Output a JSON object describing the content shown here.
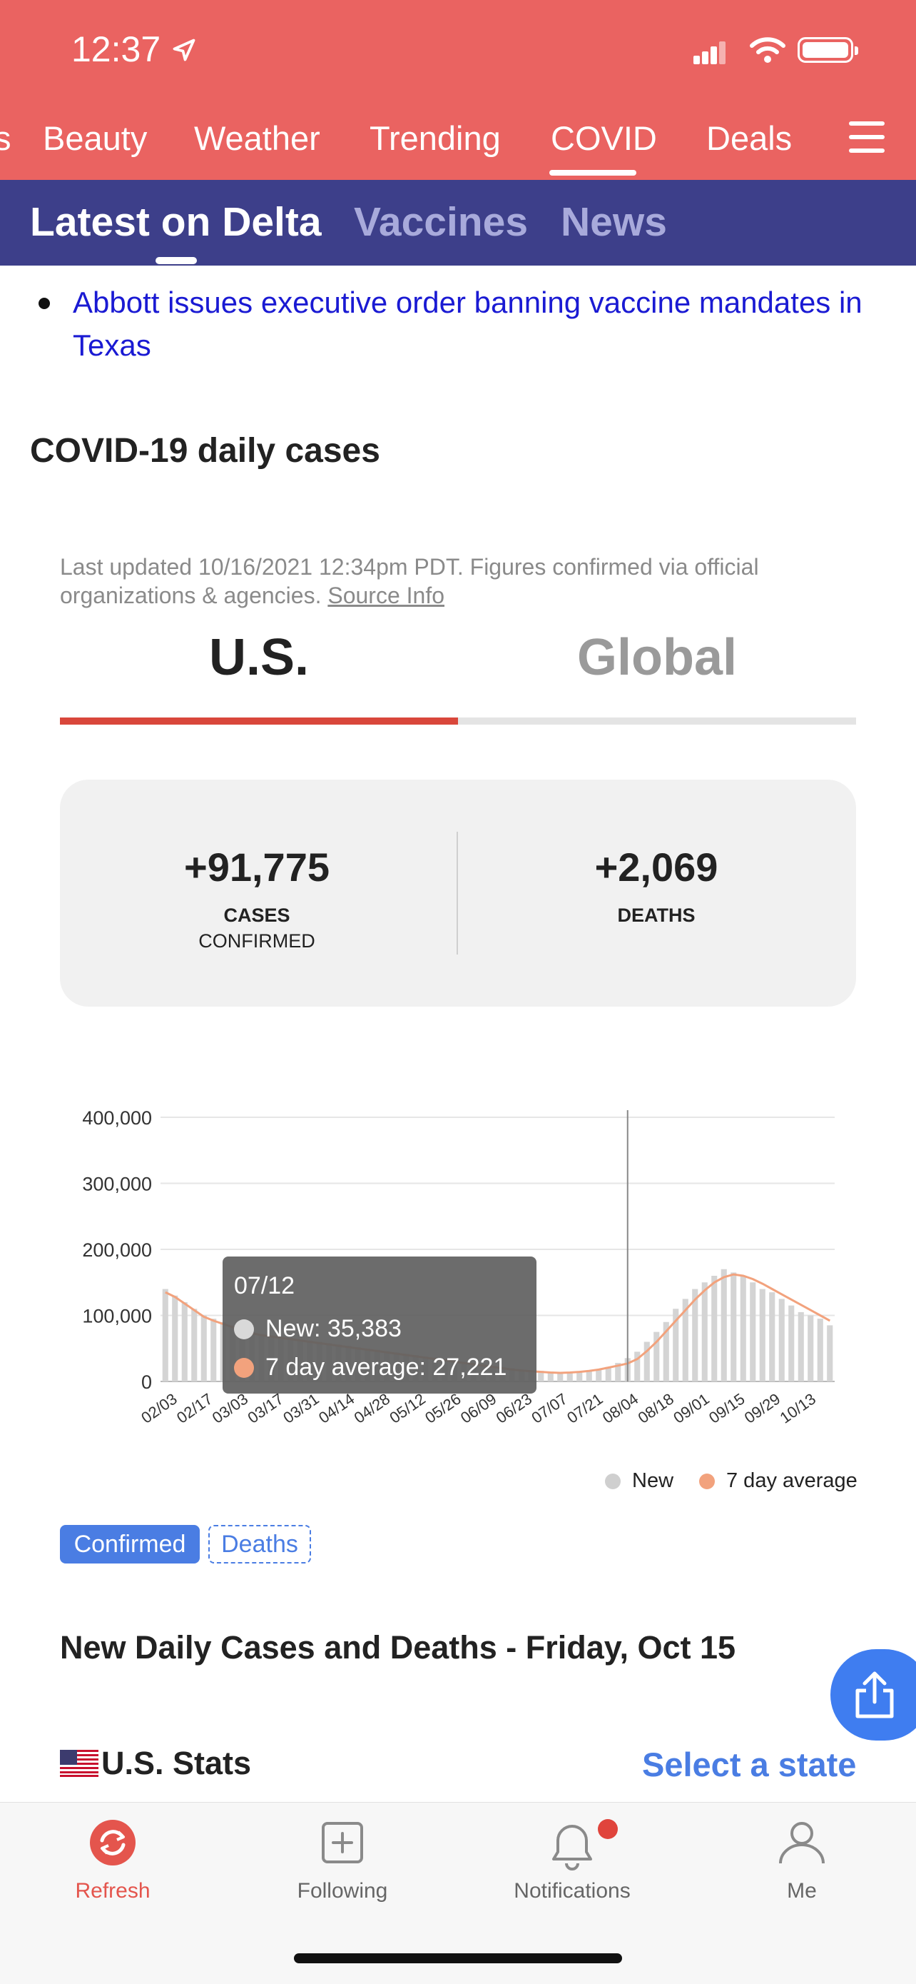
{
  "status_bar": {
    "time": "12:37"
  },
  "top_nav": {
    "partial_item": "s",
    "items": [
      "Beauty",
      "Weather",
      "Trending",
      "COVID",
      "Deals"
    ],
    "active": "COVID"
  },
  "sub_tabs": {
    "items": [
      "Latest on Delta",
      "Vaccines",
      "News"
    ],
    "active": "Latest on Delta"
  },
  "headline": "Abbott issues executive order banning vaccine mandates in Texas",
  "section_title": "COVID-19 daily cases",
  "updated": {
    "text": "Last updated 10/16/2021 12:34pm PDT. Figures confirmed via official organizations & agencies. ",
    "source_link": "Source Info"
  },
  "region_tabs": {
    "us": "U.S.",
    "global": "Global",
    "active": "U.S."
  },
  "stats": {
    "cases_value": "+91,775",
    "cases_label_1": "CASES",
    "cases_label_2": "CONFIRMED",
    "deaths_value": "+2,069",
    "deaths_label": "DEATHS"
  },
  "chart_data": {
    "type": "bar",
    "title": "",
    "xlabel": "",
    "ylabel": "",
    "ylim": [
      0,
      400000
    ],
    "y_ticks": [
      "400,000",
      "300,000",
      "200,000",
      "100,000",
      "0"
    ],
    "x_ticks": [
      "02/03",
      "02/17",
      "03/03",
      "03/17",
      "03/31",
      "04/14",
      "04/28",
      "05/12",
      "05/26",
      "06/09",
      "06/23",
      "07/07",
      "07/21",
      "08/04",
      "08/18",
      "09/01",
      "09/15",
      "09/29",
      "10/13"
    ],
    "grid": true,
    "legend_position": "bottom-right",
    "series": [
      {
        "name": "New",
        "type": "bar",
        "color": "#d4d4d4",
        "values": [
          140000,
          130000,
          120000,
          110000,
          100000,
          95000,
          90000,
          85000,
          80000,
          75000,
          72000,
          70000,
          68000,
          66000,
          64000,
          62000,
          60000,
          58000,
          56000,
          54000,
          52000,
          50000,
          48000,
          46000,
          44000,
          42000,
          40000,
          38000,
          36000,
          34000,
          32000,
          30000,
          28000,
          26000,
          24000,
          22000,
          20000,
          18000,
          17000,
          16000,
          15000,
          14000,
          14000,
          15000,
          16000,
          18000,
          22000,
          28000,
          35383,
          45000,
          60000,
          75000,
          90000,
          110000,
          125000,
          140000,
          150000,
          160000,
          170000,
          165000,
          160000,
          150000,
          140000,
          135000,
          125000,
          115000,
          105000,
          100000,
          95000,
          85000
        ]
      },
      {
        "name": "7 day average",
        "type": "line",
        "color": "#f2a27d",
        "values": [
          135000,
          128000,
          118000,
          108000,
          98000,
          92000,
          87000,
          82000,
          77000,
          73000,
          70000,
          68000,
          66000,
          64000,
          62000,
          60000,
          58000,
          56000,
          54000,
          52000,
          50000,
          48000,
          46000,
          44000,
          42000,
          40000,
          38000,
          36000,
          34000,
          32000,
          30000,
          28000,
          26000,
          24000,
          22000,
          20000,
          18000,
          16500,
          15500,
          14500,
          13500,
          13000,
          13500,
          14500,
          16000,
          18000,
          21000,
          24000,
          27221,
          34000,
          46000,
          60000,
          76000,
          92000,
          108000,
          124000,
          138000,
          150000,
          158000,
          162000,
          160000,
          155000,
          148000,
          140000,
          132000,
          124000,
          116000,
          108000,
          100000,
          92000
        ]
      }
    ],
    "tooltip": {
      "date": "07/12",
      "new": "New: 35,383",
      "avg": "7 day average: 27,221"
    }
  },
  "legend": {
    "new": "New",
    "avg": "7 day average"
  },
  "metric_toggle": {
    "confirmed": "Confirmed",
    "deaths": "Deaths",
    "active": "Confirmed"
  },
  "daily_title": "New Daily Cases and Deaths - Friday, Oct 15",
  "us_stats_label": "U.S. Stats",
  "select_state": "Select a state",
  "tab_bar": {
    "refresh": "Refresh",
    "following": "Following",
    "notifications": "Notifications",
    "me": "Me"
  },
  "colors": {
    "brand_red": "#ea6361",
    "nav_purple": "#3d3f8a",
    "link_blue": "#1a1ad3",
    "accent_blue": "#4a7de3",
    "active_red": "#d9473b"
  }
}
